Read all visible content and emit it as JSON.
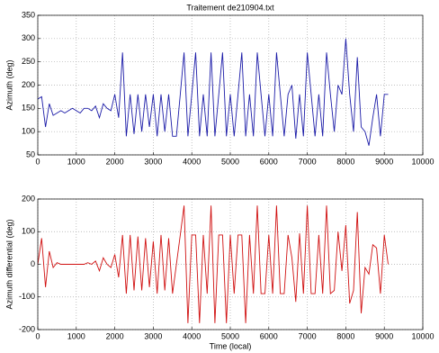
{
  "chart_data": [
    {
      "type": "line",
      "title": "Traitement de210904.txt",
      "ylabel": "Azimuth (deg)",
      "color": "#1c1ca8",
      "x": [
        0,
        100,
        200,
        300,
        400,
        500,
        600,
        700,
        800,
        900,
        1000,
        1100,
        1200,
        1300,
        1400,
        1500,
        1600,
        1700,
        1800,
        1900,
        2000,
        2100,
        2200,
        2300,
        2400,
        2500,
        2600,
        2700,
        2800,
        2900,
        3000,
        3100,
        3200,
        3300,
        3400,
        3500,
        3600,
        3700,
        3800,
        3900,
        4000,
        4100,
        4200,
        4300,
        4400,
        4500,
        4600,
        4700,
        4800,
        4900,
        5000,
        5100,
        5200,
        5300,
        5400,
        5500,
        5600,
        5700,
        5800,
        5900,
        6000,
        6100,
        6200,
        6300,
        6400,
        6500,
        6600,
        6700,
        6800,
        6900,
        7000,
        7100,
        7200,
        7300,
        7400,
        7500,
        7600,
        7700,
        7800,
        7900,
        8000,
        8100,
        8200,
        8300,
        8400,
        8500,
        8600,
        8700,
        8800,
        8900,
        9000,
        9100
      ],
      "values": [
        170,
        175,
        110,
        160,
        135,
        140,
        145,
        140,
        145,
        150,
        145,
        140,
        150,
        150,
        145,
        155,
        130,
        160,
        150,
        145,
        180,
        130,
        270,
        90,
        180,
        95,
        180,
        100,
        180,
        110,
        180,
        90,
        180,
        100,
        180,
        90,
        90,
        180,
        270,
        90,
        180,
        270,
        90,
        180,
        90,
        270,
        90,
        180,
        270,
        90,
        180,
        90,
        180,
        270,
        90,
        180,
        90,
        270,
        180,
        90,
        180,
        90,
        270,
        180,
        90,
        180,
        200,
        85,
        180,
        90,
        270,
        180,
        90,
        180,
        90,
        270,
        180,
        100,
        200,
        180,
        300,
        180,
        100,
        260,
        110,
        100,
        70,
        130,
        180,
        90,
        180,
        180
      ],
      "xlim": [
        0,
        10000
      ],
      "xticks": [
        0,
        1000,
        2000,
        3000,
        4000,
        5000,
        6000,
        7000,
        8000,
        9000,
        10000
      ],
      "ylim": [
        50,
        350
      ],
      "yticks": [
        50,
        100,
        150,
        200,
        250,
        300,
        350
      ],
      "grid": true
    },
    {
      "type": "line",
      "xlabel": "Time (local)",
      "ylabel": "Azimuth differential (deg)",
      "color": "#d01010",
      "x": [
        0,
        100,
        200,
        300,
        400,
        500,
        600,
        700,
        800,
        900,
        1000,
        1100,
        1200,
        1300,
        1400,
        1500,
        1600,
        1700,
        1800,
        1900,
        2000,
        2100,
        2200,
        2300,
        2400,
        2500,
        2600,
        2700,
        2800,
        2900,
        3000,
        3100,
        3200,
        3300,
        3400,
        3500,
        3600,
        3700,
        3800,
        3900,
        4000,
        4100,
        4200,
        4300,
        4400,
        4500,
        4600,
        4700,
        4800,
        4900,
        5000,
        5100,
        5200,
        5300,
        5400,
        5500,
        5600,
        5700,
        5800,
        5900,
        6000,
        6100,
        6200,
        6300,
        6400,
        6500,
        6600,
        6700,
        6800,
        6900,
        7000,
        7100,
        7200,
        7300,
        7400,
        7500,
        7600,
        7700,
        7800,
        7900,
        8000,
        8100,
        8200,
        8300,
        8400,
        8500,
        8600,
        8700,
        8800,
        8900,
        9000,
        9100
      ],
      "values": [
        0,
        80,
        -70,
        40,
        -10,
        5,
        0,
        0,
        0,
        0,
        0,
        0,
        0,
        5,
        0,
        10,
        -20,
        20,
        0,
        -10,
        30,
        -40,
        90,
        -90,
        90,
        -80,
        85,
        -80,
        80,
        -70,
        70,
        -90,
        90,
        -80,
        80,
        -90,
        0,
        90,
        180,
        -180,
        90,
        90,
        -180,
        90,
        -90,
        180,
        -180,
        90,
        90,
        -180,
        90,
        -90,
        90,
        90,
        -180,
        90,
        -90,
        180,
        -90,
        -90,
        90,
        -90,
        180,
        -90,
        -90,
        90,
        20,
        -115,
        95,
        -90,
        180,
        -90,
        -90,
        90,
        -90,
        180,
        -90,
        -80,
        100,
        -20,
        120,
        -120,
        -80,
        160,
        -150,
        -10,
        -30,
        60,
        50,
        -90,
        90,
        0
      ],
      "xlim": [
        0,
        10000
      ],
      "xticks": [
        0,
        1000,
        2000,
        3000,
        4000,
        5000,
        6000,
        7000,
        8000,
        9000,
        10000
      ],
      "ylim": [
        -200,
        200
      ],
      "yticks": [
        -200,
        -100,
        0,
        100,
        200
      ],
      "grid": true
    }
  ]
}
